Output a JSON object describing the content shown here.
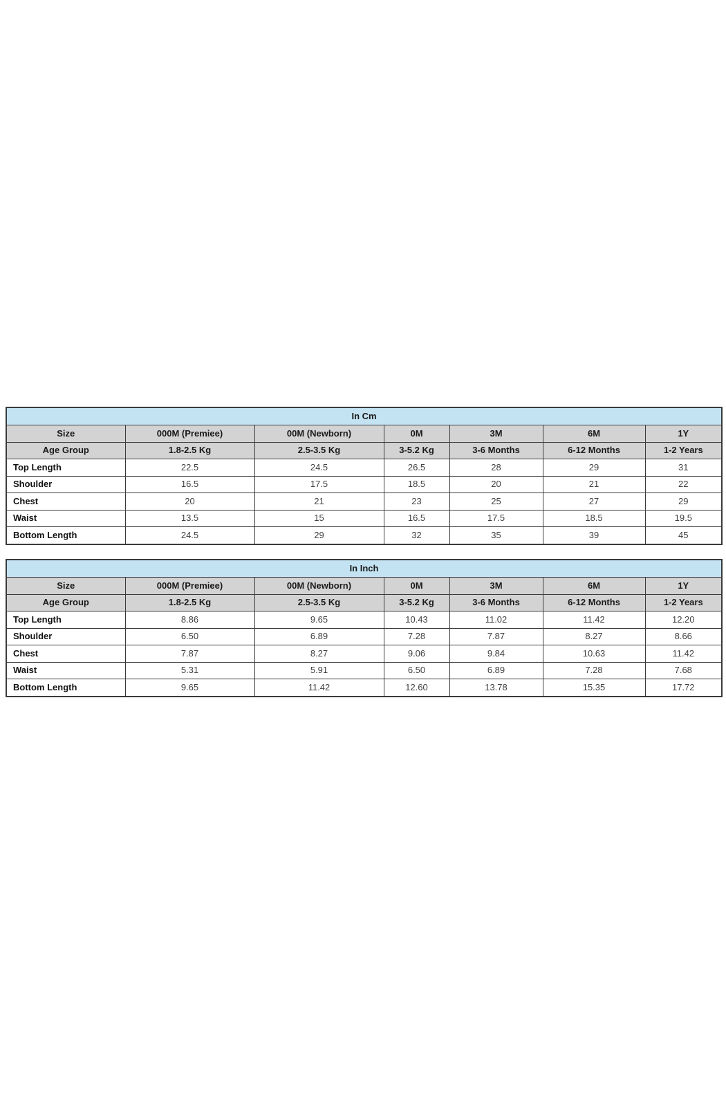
{
  "colors": {
    "title_bg": "#c3e3f3",
    "header_bg": "#d3d3d3",
    "border": "#3a3a3a"
  },
  "tables": [
    {
      "title": "In Cm",
      "size_row_label": "Size",
      "age_row_label": "Age Group",
      "size_columns": [
        "000M (Premiee)",
        "00M (Newborn)",
        "0M",
        "3M",
        "6M",
        "1Y"
      ],
      "age_groups": [
        "1.8-2.5 Kg",
        "2.5-3.5 Kg",
        "3-5.2 Kg",
        "3-6 Months",
        "6-12 Months",
        "1-2 Years"
      ],
      "rows": [
        {
          "label": "Top Length",
          "values": [
            "22.5",
            "24.5",
            "26.5",
            "28",
            "29",
            "31"
          ]
        },
        {
          "label": "Shoulder",
          "values": [
            "16.5",
            "17.5",
            "18.5",
            "20",
            "21",
            "22"
          ]
        },
        {
          "label": "Chest",
          "values": [
            "20",
            "21",
            "23",
            "25",
            "27",
            "29"
          ]
        },
        {
          "label": "Waist",
          "values": [
            "13.5",
            "15",
            "16.5",
            "17.5",
            "18.5",
            "19.5"
          ]
        },
        {
          "label": "Bottom Length",
          "values": [
            "24.5",
            "29",
            "32",
            "35",
            "39",
            "45"
          ]
        }
      ]
    },
    {
      "title": "In Inch",
      "size_row_label": "Size",
      "age_row_label": "Age Group",
      "size_columns": [
        "000M (Premiee)",
        "00M (Newborn)",
        "0M",
        "3M",
        "6M",
        "1Y"
      ],
      "age_groups": [
        "1.8-2.5 Kg",
        "2.5-3.5 Kg",
        "3-5.2 Kg",
        "3-6 Months",
        "6-12 Months",
        "1-2 Years"
      ],
      "rows": [
        {
          "label": "Top Length",
          "values": [
            "8.86",
            "9.65",
            "10.43",
            "11.02",
            "11.42",
            "12.20"
          ]
        },
        {
          "label": "Shoulder",
          "values": [
            "6.50",
            "6.89",
            "7.28",
            "7.87",
            "8.27",
            "8.66"
          ]
        },
        {
          "label": "Chest",
          "values": [
            "7.87",
            "8.27",
            "9.06",
            "9.84",
            "10.63",
            "11.42"
          ]
        },
        {
          "label": "Waist",
          "values": [
            "5.31",
            "5.91",
            "6.50",
            "6.89",
            "7.28",
            "7.68"
          ]
        },
        {
          "label": "Bottom Length",
          "values": [
            "9.65",
            "11.42",
            "12.60",
            "13.78",
            "15.35",
            "17.72"
          ]
        }
      ]
    }
  ]
}
